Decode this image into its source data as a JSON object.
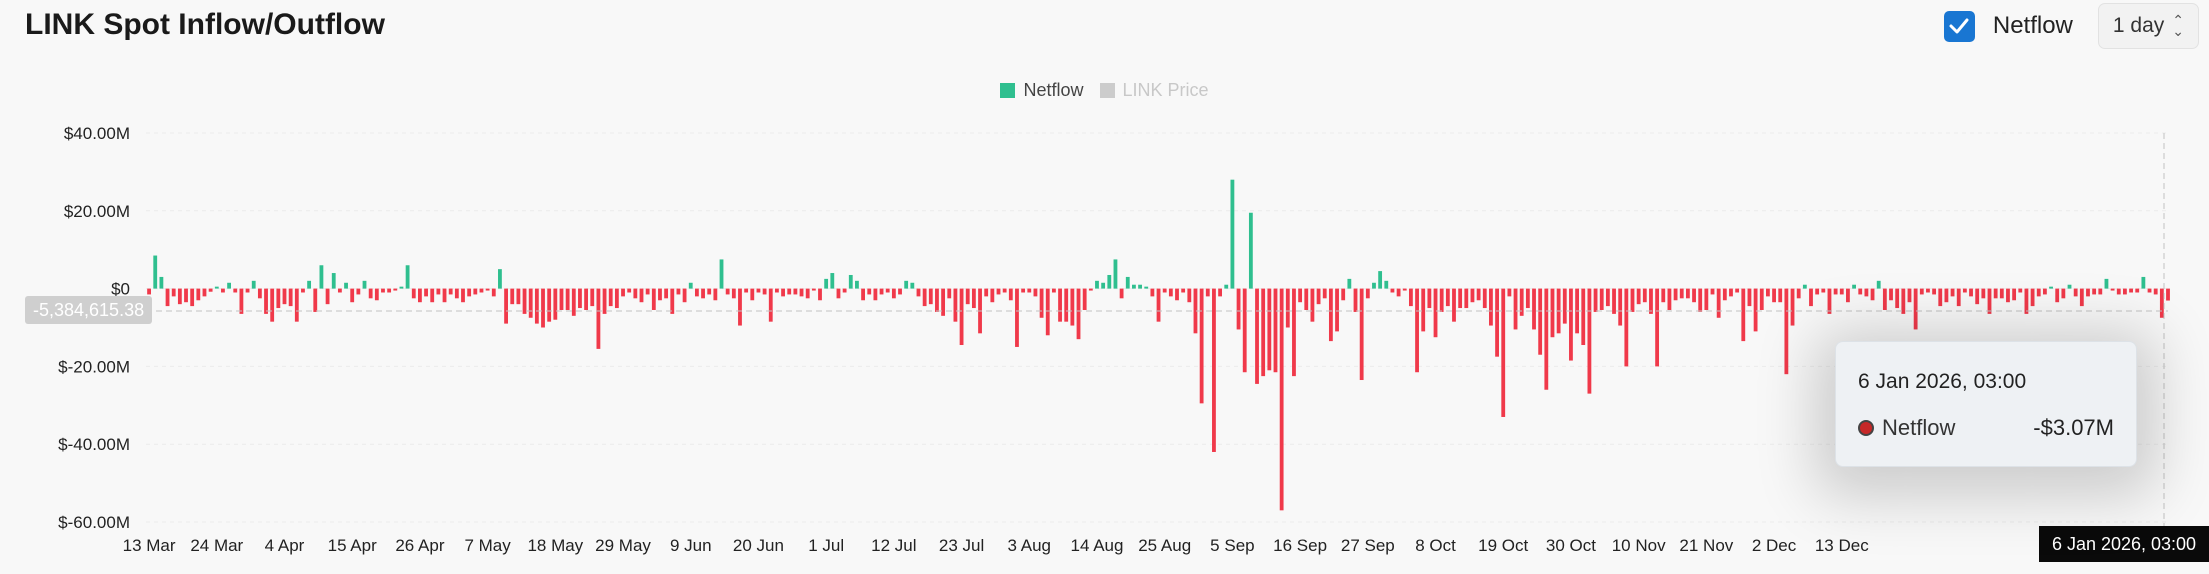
{
  "header": {
    "title": "LINK Spot Inflow/Outflow",
    "netflow_toggle_label": "Netflow",
    "interval_value": "1 day"
  },
  "legend": [
    {
      "label": "Netflow",
      "color": "#2fbf8f",
      "active": true
    },
    {
      "label": "LINK Price",
      "color": "#cccccc",
      "active": false
    }
  ],
  "tooltip": {
    "date": "6 Jan 2026, 03:00",
    "series": "Netflow",
    "value": "-$3.07M"
  },
  "crosshair": {
    "x_label": "6 Jan 2026, 03:00",
    "y_label": "-5,384,615.38"
  },
  "chart_data": {
    "type": "bar",
    "title": "LINK Spot Inflow/Outflow",
    "xlabel": "",
    "ylabel": "",
    "units": "USD",
    "ylim": [
      -60000000,
      40000000
    ],
    "y_ticks": [
      {
        "value": 40000000,
        "label": "$40.00M"
      },
      {
        "value": 20000000,
        "label": "$20.00M"
      },
      {
        "value": 0,
        "label": "$0"
      },
      {
        "value": -20000000,
        "label": "$-20.00M"
      },
      {
        "value": -40000000,
        "label": "$-40.00M"
      },
      {
        "value": -60000000,
        "label": "$-60.00M"
      }
    ],
    "x_ticks": [
      "13 Mar",
      "24 Mar",
      "4 Apr",
      "15 Apr",
      "26 Apr",
      "7 May",
      "18 May",
      "29 May",
      "9 Jun",
      "20 Jun",
      "1 Jul",
      "12 Jul",
      "23 Jul",
      "3 Aug",
      "14 Aug",
      "25 Aug",
      "5 Sep",
      "16 Sep",
      "27 Sep",
      "8 Oct",
      "19 Oct",
      "30 Oct",
      "10 Nov",
      "21 Nov",
      "2 Dec",
      "13 Dec"
    ],
    "grid": true,
    "legend_position": "top-center",
    "colors": {
      "positive": "#2fbf8f",
      "negative": "#f0394a"
    },
    "series": [
      {
        "name": "Netflow",
        "start_date": "13 Mar",
        "interval": "1 day",
        "values_millions": [
          -1.5,
          8.5,
          3.0,
          -4.5,
          -2.0,
          -4.0,
          -3.5,
          -4.5,
          -3.0,
          -2.0,
          -0.8,
          0.5,
          -1.0,
          1.5,
          -1.0,
          -6.5,
          -1.0,
          2.0,
          -2.5,
          -6.5,
          -8.5,
          -5.0,
          -4.0,
          -4.5,
          -8.5,
          -1.0,
          2.0,
          -6.0,
          6.0,
          -4.0,
          4.0,
          -1.0,
          1.5,
          -3.5,
          -1.5,
          2.0,
          -2.5,
          -3.0,
          -1.0,
          -1.0,
          -0.5,
          0.5,
          6.0,
          -2.5,
          -3.5,
          -2.0,
          -3.5,
          -1.5,
          -3.5,
          -1.5,
          -2.5,
          -3.5,
          -2.0,
          -1.5,
          -1.0,
          -0.5,
          -2.0,
          5.0,
          -9.0,
          -4.0,
          -4.0,
          -6.5,
          -7.5,
          -9.0,
          -10.0,
          -8.5,
          -8.0,
          -5.5,
          -5.5,
          -7.0,
          -5.0,
          -5.5,
          -4.5,
          -15.5,
          -6.5,
          -4.5,
          -5.0,
          -2.0,
          -1.0,
          -2.5,
          -3.5,
          -1.5,
          -5.5,
          -3.0,
          -2.5,
          -6.5,
          -1.5,
          -3.5,
          1.5,
          -2.0,
          -2.5,
          -1.5,
          -3.0,
          7.5,
          -1.5,
          -2.5,
          -9.5,
          -1.0,
          -3.0,
          -1.0,
          -1.5,
          -8.5,
          -1.0,
          -2.0,
          -1.5,
          -1.5,
          -2.0,
          -2.5,
          -0.5,
          -3.0,
          2.5,
          4.0,
          -2.5,
          -1.0,
          3.5,
          2.0,
          -3.0,
          -1.5,
          -3.0,
          -1.5,
          -1.0,
          -2.5,
          -1.5,
          2.0,
          1.5,
          -2.0,
          -4.5,
          -4.0,
          -6.0,
          -7.0,
          -2.5,
          -8.5,
          -14.5,
          -4.0,
          -5.0,
          -11.5,
          -2.0,
          -3.5,
          -1.5,
          -1.0,
          -3.0,
          -15.0,
          -1.0,
          -1.0,
          -2.0,
          -7.5,
          -12.0,
          -1.0,
          -8.5,
          -8.5,
          -9.5,
          -13.0,
          -5.5,
          -0.5,
          2.0,
          1.5,
          3.5,
          7.5,
          -2.5,
          3.0,
          1.0,
          1.0,
          0.5,
          -2.0,
          -8.5,
          -1.0,
          -2.0,
          -3.0,
          -1.0,
          -3.5,
          -11.5,
          -29.5,
          -2.0,
          -42.0,
          -2.0,
          1.0,
          28.0,
          -10.5,
          -21.5,
          19.5,
          -24.5,
          -22.5,
          -21.0,
          -21.5,
          -57.0,
          -10.0,
          -22.5,
          -3.5,
          -5.5,
          -8.5,
          -4.0,
          -2.5,
          -13.5,
          -11.0,
          -3.0,
          2.5,
          -6.0,
          -23.5,
          -2.5,
          1.5,
          4.5,
          2.0,
          -1.0,
          -2.0,
          -0.5,
          -4.5,
          -21.5,
          -11.0,
          -5.0,
          -12.5,
          -6.0,
          -4.5,
          -8.5,
          -5.0,
          -5.0,
          -3.5,
          -3.0,
          -5.0,
          -9.5,
          -17.5,
          -33.0,
          -2.0,
          -10.5,
          -7.0,
          -5.0,
          -10.5,
          -17.0,
          -26.0,
          -12.5,
          -11.5,
          -9.0,
          -18.5,
          -11.5,
          -14.5,
          -27.0,
          -6.0,
          -5.5,
          -4.5,
          -6.5,
          -9.5,
          -20.0,
          -6.0,
          -4.0,
          -3.5,
          -6.5,
          -20.0,
          -3.5,
          -5.5,
          -3.0,
          -2.5,
          -2.5,
          -3.5,
          -6.0,
          -5.5,
          -1.5,
          -7.5,
          -3.0,
          -2.0,
          -1.0,
          -13.5,
          -4.5,
          -11.0,
          -5.5,
          -2.0,
          -3.5,
          -3.5,
          -22.0,
          -9.5,
          -2.5,
          1.0,
          -4.5,
          -1.5,
          -1.0,
          -6.5,
          -1.5,
          -1.5,
          -3.5,
          1.0,
          -1.5,
          -2.0,
          -3.0,
          2.0,
          -5.5,
          -3.0,
          -5.0,
          -6.5,
          -3.5,
          -10.5,
          -1.5,
          -1.0,
          -1.5,
          -4.5,
          -3.5,
          -2.0,
          -4.5,
          -1.0,
          -2.0,
          -4.0,
          -2.5,
          -6.5,
          -2.5,
          -2.5,
          -3.5,
          -3.0,
          -1.0,
          -6.5,
          -4.5,
          -2.0,
          -1.5,
          0.5,
          -3.5,
          -2.5,
          1.0,
          -2.0,
          -4.5,
          -2.0,
          -1.5,
          -1.5,
          2.5,
          -0.5,
          -1.5,
          -1.5,
          -1.0,
          -1.0,
          3.0,
          -1.0,
          -1.5,
          -7.5,
          -3.07
        ]
      }
    ]
  }
}
